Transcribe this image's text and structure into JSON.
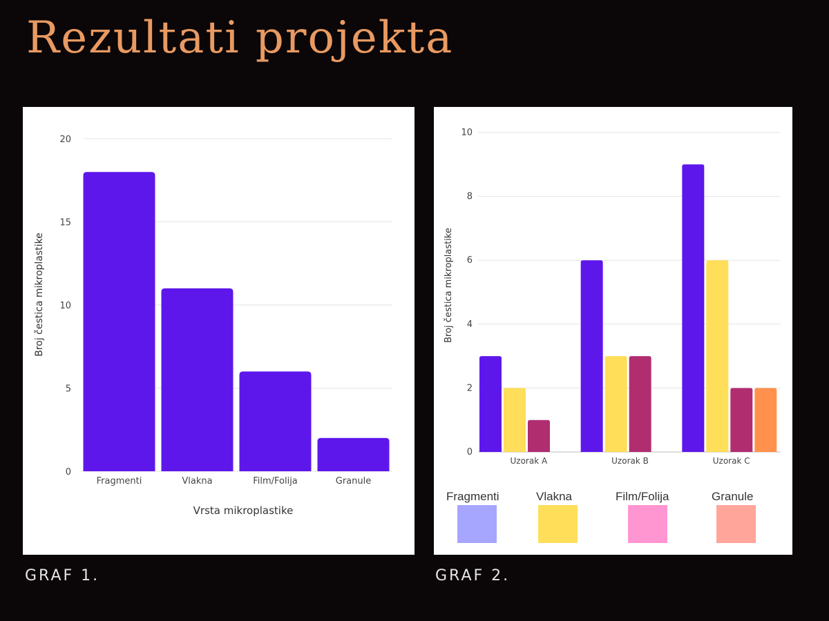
{
  "page": {
    "title": "Rezultati projekta",
    "caption1": "GRAF 1.",
    "caption2": "GRAF 2.",
    "background": "#0b0607",
    "title_color": "#e89a62"
  },
  "chart_data": [
    {
      "type": "bar",
      "title": "",
      "xlabel": "Vrsta mikroplastike",
      "ylabel": "Broj čestica mikroplastike",
      "categories": [
        "Fragmenti",
        "Vlakna",
        "Film/Folija",
        "Granule"
      ],
      "values": [
        18,
        11,
        6,
        2
      ],
      "ylim": [
        0,
        20
      ],
      "yticks": [
        0,
        5,
        10,
        15,
        20
      ],
      "grid": true,
      "color": "#5e17eb"
    },
    {
      "type": "bar",
      "title": "",
      "xlabel": "",
      "ylabel": "Broj čestica mikroplastike",
      "categories": [
        "Uzorak A",
        "Uzorak B",
        "Uzorak C"
      ],
      "series": [
        {
          "name": "Fragmenti",
          "values": [
            3,
            6,
            9
          ],
          "color": "#5e17eb",
          "legend_color": "#a6a6ff"
        },
        {
          "name": "Vlakna",
          "values": [
            2,
            3,
            6
          ],
          "color": "#ffde59",
          "legend_color": "#ffde59"
        },
        {
          "name": "Film/Folija",
          "values": [
            1,
            3,
            2
          ],
          "color": "#b02d70",
          "legend_color": "#ff96d2"
        },
        {
          "name": "Granule",
          "values": [
            0,
            0,
            2
          ],
          "color": "#ff914d",
          "legend_color": "#ffa599"
        }
      ],
      "ylim": [
        0,
        10
      ],
      "yticks": [
        0,
        2,
        4,
        6,
        8,
        10
      ],
      "grid": true,
      "legend_position": "bottom"
    }
  ]
}
